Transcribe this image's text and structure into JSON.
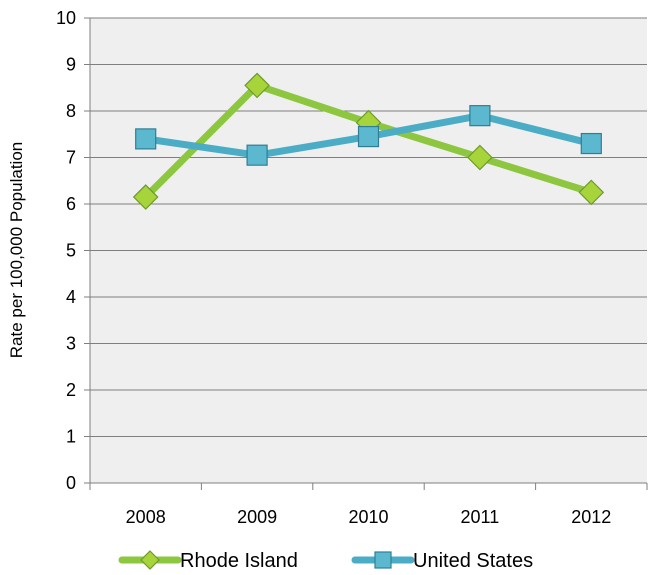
{
  "chart_data": {
    "type": "line",
    "title": "",
    "xlabel": "",
    "ylabel": "Rate per 100,000 Population",
    "x": [
      "2008",
      "2009",
      "2010",
      "2011",
      "2012"
    ],
    "ylim": [
      0,
      10
    ],
    "yticks": [
      "0",
      "1",
      "2",
      "3",
      "4",
      "5",
      "6",
      "7",
      "8",
      "9",
      "10"
    ],
    "grid": true,
    "legend_position": "bottom",
    "series": [
      {
        "name": "Rhode Island",
        "values": [
          6.15,
          8.55,
          7.75,
          7.0,
          6.25
        ],
        "marker": "diamond",
        "color": "#8DC63F",
        "marker_fill": "#A6D43A"
      },
      {
        "name": "United States",
        "values": [
          7.4,
          7.05,
          7.45,
          7.9,
          7.3
        ],
        "marker": "square",
        "color": "#4BACC6",
        "marker_fill": "#5CB8CE"
      }
    ],
    "background": "#EFEFEF",
    "gridline_color": "#7F7F7F"
  }
}
